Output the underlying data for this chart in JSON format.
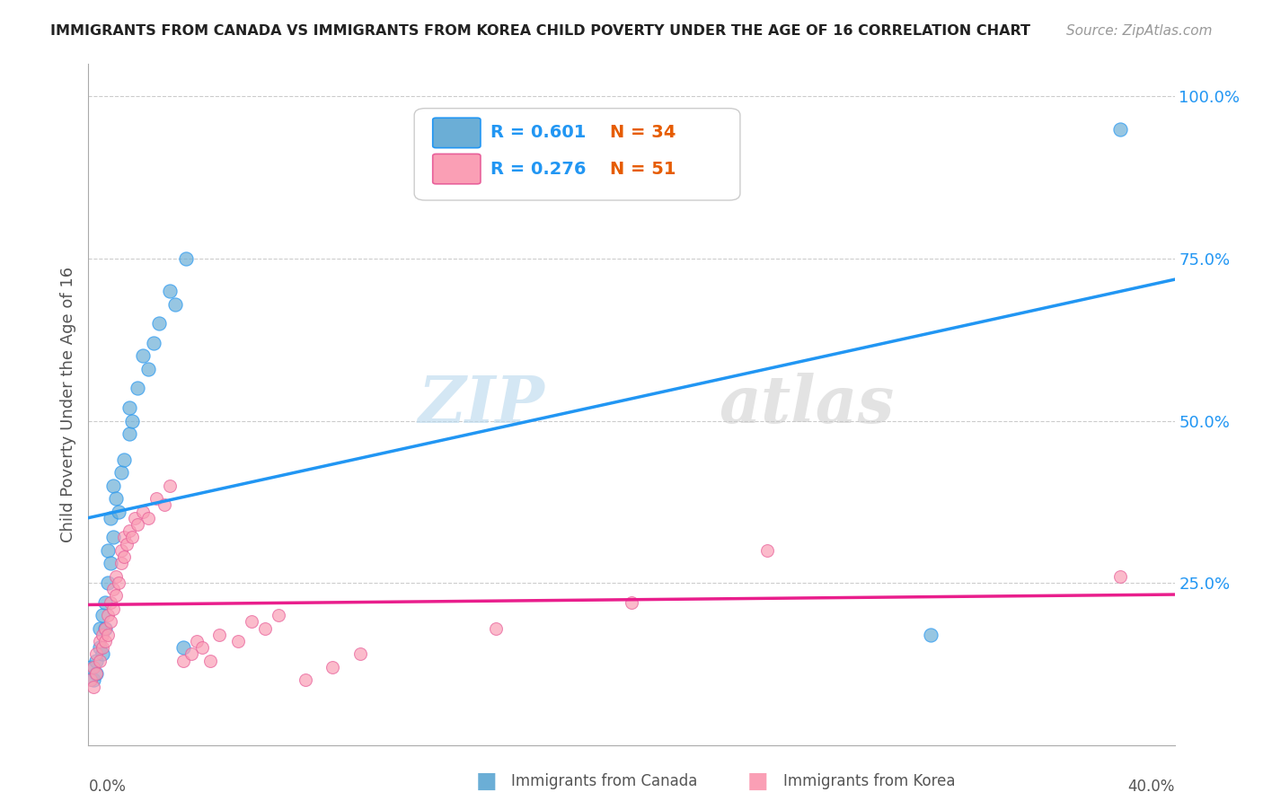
{
  "title": "IMMIGRANTS FROM CANADA VS IMMIGRANTS FROM KOREA CHILD POVERTY UNDER THE AGE OF 16 CORRELATION CHART",
  "source": "Source: ZipAtlas.com",
  "ylabel": "Child Poverty Under the Age of 16",
  "legend_canada": "Immigrants from Canada",
  "legend_korea": "Immigrants from Korea",
  "r_canada": "R = 0.601",
  "n_canada": "N = 34",
  "r_korea": "R = 0.276",
  "n_korea": "N = 51",
  "color_canada": "#6baed6",
  "color_korea": "#fa9fb5",
  "trendline_canada_color": "#2196F3",
  "trendline_korea_color": "#e91e8c",
  "watermark_zip": "ZIP",
  "watermark_atlas": "atlas",
  "canada_points": [
    [
      0.001,
      0.12
    ],
    [
      0.002,
      0.1
    ],
    [
      0.003,
      0.13
    ],
    [
      0.003,
      0.11
    ],
    [
      0.004,
      0.15
    ],
    [
      0.004,
      0.18
    ],
    [
      0.005,
      0.14
    ],
    [
      0.005,
      0.2
    ],
    [
      0.006,
      0.22
    ],
    [
      0.006,
      0.18
    ],
    [
      0.007,
      0.25
    ],
    [
      0.007,
      0.3
    ],
    [
      0.008,
      0.28
    ],
    [
      0.008,
      0.35
    ],
    [
      0.009,
      0.32
    ],
    [
      0.009,
      0.4
    ],
    [
      0.01,
      0.38
    ],
    [
      0.011,
      0.36
    ],
    [
      0.012,
      0.42
    ],
    [
      0.013,
      0.44
    ],
    [
      0.015,
      0.48
    ],
    [
      0.015,
      0.52
    ],
    [
      0.016,
      0.5
    ],
    [
      0.018,
      0.55
    ],
    [
      0.02,
      0.6
    ],
    [
      0.022,
      0.58
    ],
    [
      0.024,
      0.62
    ],
    [
      0.026,
      0.65
    ],
    [
      0.03,
      0.7
    ],
    [
      0.032,
      0.68
    ],
    [
      0.035,
      0.15
    ],
    [
      0.036,
      0.75
    ],
    [
      0.38,
      0.95
    ],
    [
      0.31,
      0.17
    ]
  ],
  "korea_points": [
    [
      0.001,
      0.1
    ],
    [
      0.002,
      0.09
    ],
    [
      0.002,
      0.12
    ],
    [
      0.003,
      0.11
    ],
    [
      0.003,
      0.14
    ],
    [
      0.004,
      0.13
    ],
    [
      0.004,
      0.16
    ],
    [
      0.005,
      0.15
    ],
    [
      0.005,
      0.17
    ],
    [
      0.006,
      0.16
    ],
    [
      0.006,
      0.18
    ],
    [
      0.007,
      0.17
    ],
    [
      0.007,
      0.2
    ],
    [
      0.008,
      0.19
    ],
    [
      0.008,
      0.22
    ],
    [
      0.009,
      0.21
    ],
    [
      0.009,
      0.24
    ],
    [
      0.01,
      0.23
    ],
    [
      0.01,
      0.26
    ],
    [
      0.011,
      0.25
    ],
    [
      0.012,
      0.28
    ],
    [
      0.012,
      0.3
    ],
    [
      0.013,
      0.29
    ],
    [
      0.013,
      0.32
    ],
    [
      0.014,
      0.31
    ],
    [
      0.015,
      0.33
    ],
    [
      0.016,
      0.32
    ],
    [
      0.017,
      0.35
    ],
    [
      0.018,
      0.34
    ],
    [
      0.02,
      0.36
    ],
    [
      0.022,
      0.35
    ],
    [
      0.025,
      0.38
    ],
    [
      0.028,
      0.37
    ],
    [
      0.03,
      0.4
    ],
    [
      0.035,
      0.13
    ],
    [
      0.038,
      0.14
    ],
    [
      0.04,
      0.16
    ],
    [
      0.042,
      0.15
    ],
    [
      0.045,
      0.13
    ],
    [
      0.048,
      0.17
    ],
    [
      0.055,
      0.16
    ],
    [
      0.06,
      0.19
    ],
    [
      0.065,
      0.18
    ],
    [
      0.07,
      0.2
    ],
    [
      0.08,
      0.1
    ],
    [
      0.09,
      0.12
    ],
    [
      0.1,
      0.14
    ],
    [
      0.15,
      0.18
    ],
    [
      0.2,
      0.22
    ],
    [
      0.25,
      0.3
    ],
    [
      0.38,
      0.26
    ]
  ]
}
